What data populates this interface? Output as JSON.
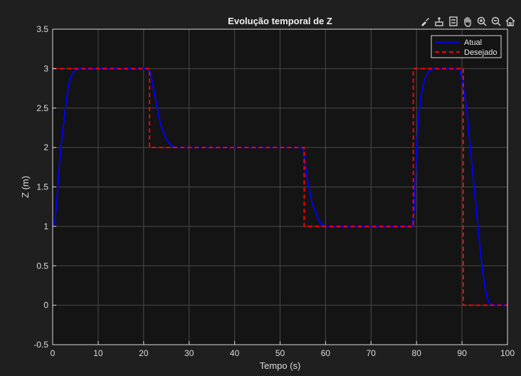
{
  "colors": {
    "figure_bg": "#1f1f1f",
    "axes_bg": "#141414",
    "grid": "#4a4a4a",
    "axis_text": "#dcdcdc",
    "atual": "#0000ff",
    "desejado": "#ff0000"
  },
  "toolbar": {
    "icons": [
      "brush-icon",
      "data-cursor-icon",
      "legend-toggle-icon",
      "pan-icon",
      "zoom-in-icon",
      "zoom-out-icon",
      "home-icon"
    ]
  },
  "chart_data": {
    "type": "line",
    "title": "Evolução temporal de Z",
    "xlabel": "Tempo (s)",
    "ylabel": "Z (m)",
    "xlim": [
      0,
      100
    ],
    "ylim": [
      -0.5,
      3.5
    ],
    "xticks": [
      0,
      10,
      20,
      30,
      40,
      50,
      60,
      70,
      80,
      90,
      100
    ],
    "yticks": [
      -0.5,
      0,
      0.5,
      1,
      1.5,
      2,
      2.5,
      3,
      3.5
    ],
    "xtick_labels": [
      "0",
      "10",
      "20",
      "30",
      "40",
      "50",
      "60",
      "70",
      "80",
      "90",
      "100"
    ],
    "ytick_labels": [
      "-0.5",
      "0",
      "0.5",
      "1",
      "1.5",
      "2",
      "2.5",
      "3",
      "3.5"
    ],
    "grid": true,
    "legend_position": "top-right",
    "series": [
      {
        "name": "Atual",
        "style": "solid",
        "color": "#0000ff",
        "x": [
          0,
          0.5,
          1,
          1.5,
          2,
          2.5,
          3,
          3.5,
          4,
          4.5,
          5,
          5.5,
          6,
          21,
          21.5,
          22,
          22.5,
          23,
          23.5,
          24,
          25,
          26,
          27,
          28,
          55,
          55.5,
          56,
          56.5,
          57,
          58,
          58.5,
          59,
          60,
          79,
          79.5,
          80,
          80.5,
          81,
          81.5,
          82,
          82.5,
          83,
          84,
          89.5,
          90,
          90.5,
          91,
          91.5,
          92,
          92.5,
          93,
          93.5,
          94,
          94.5,
          95,
          95.5,
          96,
          97,
          100
        ],
        "y": [
          1.0,
          1.05,
          1.4,
          1.8,
          2.1,
          2.35,
          2.6,
          2.8,
          2.9,
          2.95,
          2.98,
          3.0,
          3.0,
          3.0,
          2.95,
          2.8,
          2.65,
          2.5,
          2.35,
          2.25,
          2.1,
          2.03,
          2.0,
          2.0,
          2.0,
          1.8,
          1.6,
          1.45,
          1.3,
          1.15,
          1.08,
          1.03,
          1.0,
          1.0,
          1.2,
          2.0,
          2.4,
          2.65,
          2.8,
          2.9,
          2.95,
          2.98,
          3.0,
          3.0,
          2.85,
          2.7,
          2.5,
          2.2,
          1.9,
          1.6,
          1.3,
          1.0,
          0.7,
          0.45,
          0.25,
          0.1,
          0.03,
          0.0,
          0.0
        ]
      },
      {
        "name": "Desejado",
        "style": "dashed",
        "color": "#ff0000",
        "x": [
          0,
          21.3,
          21.3,
          55.3,
          55.3,
          79.3,
          79.3,
          90.3,
          90.3,
          100
        ],
        "y": [
          3,
          3,
          2,
          2,
          1,
          1,
          3,
          3,
          0,
          0
        ]
      }
    ]
  }
}
